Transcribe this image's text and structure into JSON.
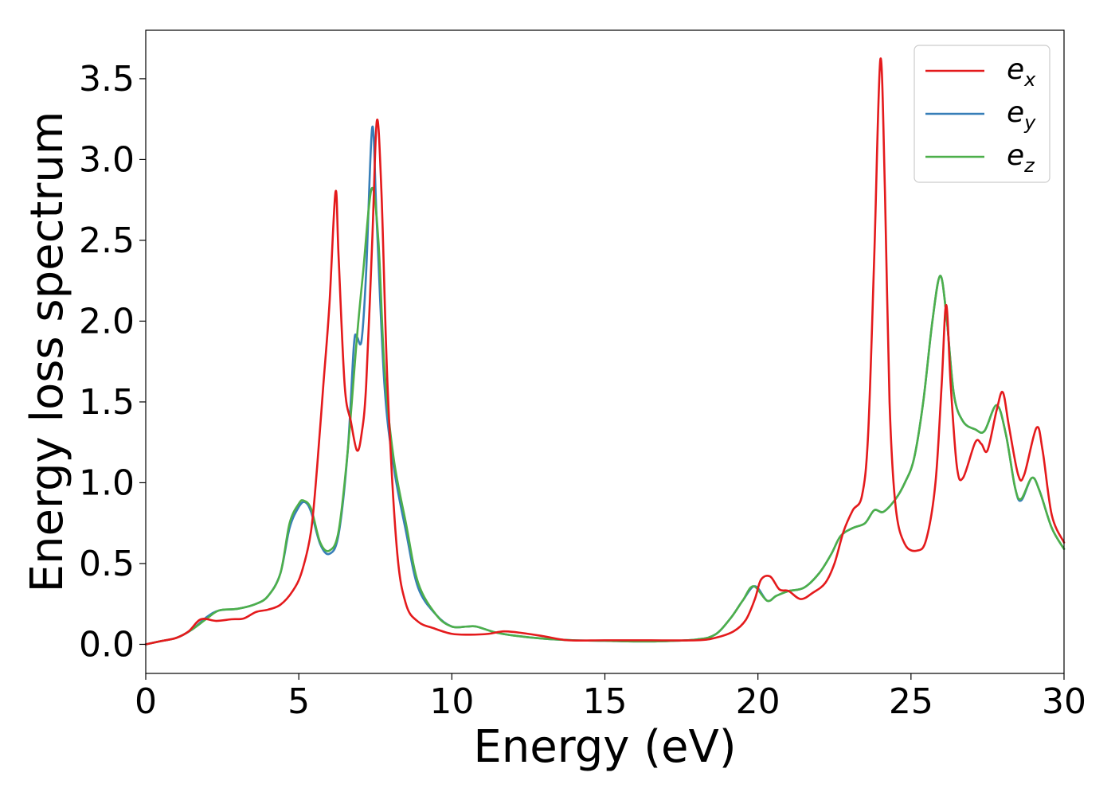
{
  "chart_data": {
    "type": "line",
    "title": "",
    "xlabel": "Energy (eV)",
    "ylabel": "Energy loss spectrum",
    "xlim": [
      0,
      30
    ],
    "ylim": [
      -0.18,
      3.8
    ],
    "x_ticks": [
      0,
      5,
      10,
      15,
      20,
      25,
      30
    ],
    "x_tick_labels": [
      "0",
      "5",
      "10",
      "15",
      "20",
      "25",
      "30"
    ],
    "y_ticks": [
      0.0,
      0.5,
      1.0,
      1.5,
      2.0,
      2.5,
      3.0,
      3.5
    ],
    "y_tick_labels": [
      "0.0",
      "0.5",
      "1.0",
      "1.5",
      "2.0",
      "2.5",
      "3.0",
      "3.5"
    ],
    "grid": false,
    "legend_position": "top-right",
    "series": [
      {
        "name": "e",
        "subscript": "x",
        "color": "#e41a1c",
        "points": [
          [
            0,
            0.0
          ],
          [
            0.5,
            0.02
          ],
          [
            1.0,
            0.04
          ],
          [
            1.4,
            0.08
          ],
          [
            1.8,
            0.155
          ],
          [
            2.3,
            0.145
          ],
          [
            2.8,
            0.155
          ],
          [
            3.2,
            0.16
          ],
          [
            3.6,
            0.2
          ],
          [
            4.0,
            0.215
          ],
          [
            4.4,
            0.245
          ],
          [
            4.8,
            0.33
          ],
          [
            5.1,
            0.45
          ],
          [
            5.4,
            0.7
          ],
          [
            5.6,
            1.1
          ],
          [
            5.8,
            1.6
          ],
          [
            6.0,
            2.1
          ],
          [
            6.2,
            2.8
          ],
          [
            6.3,
            2.4
          ],
          [
            6.5,
            1.6
          ],
          [
            6.7,
            1.38
          ],
          [
            6.9,
            1.2
          ],
          [
            7.05,
            1.3
          ],
          [
            7.2,
            1.6
          ],
          [
            7.4,
            2.5
          ],
          [
            7.55,
            3.24
          ],
          [
            7.7,
            2.8
          ],
          [
            7.9,
            1.6
          ],
          [
            8.2,
            0.6
          ],
          [
            8.5,
            0.25
          ],
          [
            8.9,
            0.14
          ],
          [
            9.4,
            0.1
          ],
          [
            10.0,
            0.065
          ],
          [
            10.6,
            0.06
          ],
          [
            11.2,
            0.065
          ],
          [
            11.7,
            0.08
          ],
          [
            12.3,
            0.07
          ],
          [
            13.0,
            0.05
          ],
          [
            13.8,
            0.025
          ],
          [
            15.0,
            0.025
          ],
          [
            16.5,
            0.025
          ],
          [
            18.0,
            0.025
          ],
          [
            18.6,
            0.04
          ],
          [
            19.2,
            0.08
          ],
          [
            19.6,
            0.15
          ],
          [
            19.9,
            0.28
          ],
          [
            20.1,
            0.4
          ],
          [
            20.4,
            0.42
          ],
          [
            20.7,
            0.34
          ],
          [
            21.0,
            0.33
          ],
          [
            21.4,
            0.28
          ],
          [
            21.8,
            0.32
          ],
          [
            22.2,
            0.38
          ],
          [
            22.5,
            0.5
          ],
          [
            22.8,
            0.7
          ],
          [
            23.1,
            0.83
          ],
          [
            23.4,
            0.92
          ],
          [
            23.6,
            1.3
          ],
          [
            23.8,
            2.4
          ],
          [
            24.0,
            3.62
          ],
          [
            24.15,
            2.8
          ],
          [
            24.3,
            1.5
          ],
          [
            24.5,
            0.85
          ],
          [
            24.8,
            0.62
          ],
          [
            25.2,
            0.58
          ],
          [
            25.5,
            0.65
          ],
          [
            25.8,
            1.0
          ],
          [
            26.0,
            1.6
          ],
          [
            26.15,
            2.1
          ],
          [
            26.3,
            1.6
          ],
          [
            26.5,
            1.1
          ],
          [
            26.7,
            1.03
          ],
          [
            27.1,
            1.25
          ],
          [
            27.3,
            1.24
          ],
          [
            27.5,
            1.2
          ],
          [
            27.8,
            1.45
          ],
          [
            28.0,
            1.56
          ],
          [
            28.2,
            1.35
          ],
          [
            28.5,
            1.05
          ],
          [
            28.7,
            1.05
          ],
          [
            29.1,
            1.34
          ],
          [
            29.3,
            1.2
          ],
          [
            29.6,
            0.8
          ],
          [
            30.0,
            0.63
          ]
        ]
      },
      {
        "name": "e",
        "subscript": "y",
        "color": "#377eb8",
        "points": [
          [
            0,
            0.0
          ],
          [
            0.5,
            0.02
          ],
          [
            1.0,
            0.04
          ],
          [
            1.5,
            0.09
          ],
          [
            2.0,
            0.17
          ],
          [
            2.4,
            0.21
          ],
          [
            3.0,
            0.22
          ],
          [
            3.6,
            0.25
          ],
          [
            4.0,
            0.3
          ],
          [
            4.4,
            0.44
          ],
          [
            4.7,
            0.72
          ],
          [
            5.0,
            0.85
          ],
          [
            5.2,
            0.88
          ],
          [
            5.4,
            0.82
          ],
          [
            5.7,
            0.62
          ],
          [
            6.0,
            0.56
          ],
          [
            6.3,
            0.68
          ],
          [
            6.6,
            1.2
          ],
          [
            6.8,
            1.85
          ],
          [
            6.9,
            1.9
          ],
          [
            7.05,
            1.88
          ],
          [
            7.2,
            2.3
          ],
          [
            7.4,
            3.2
          ],
          [
            7.55,
            2.6
          ],
          [
            7.8,
            1.6
          ],
          [
            8.1,
            1.1
          ],
          [
            8.5,
            0.7
          ],
          [
            8.9,
            0.35
          ],
          [
            9.5,
            0.18
          ],
          [
            10.0,
            0.11
          ],
          [
            10.5,
            0.11
          ],
          [
            10.8,
            0.11
          ],
          [
            11.4,
            0.075
          ],
          [
            12.0,
            0.055
          ],
          [
            13.0,
            0.035
          ],
          [
            14.0,
            0.025
          ],
          [
            15.0,
            0.022
          ],
          [
            16.0,
            0.018
          ],
          [
            17.0,
            0.02
          ],
          [
            18.0,
            0.03
          ],
          [
            18.6,
            0.06
          ],
          [
            19.1,
            0.16
          ],
          [
            19.5,
            0.27
          ],
          [
            19.9,
            0.36
          ],
          [
            20.3,
            0.27
          ],
          [
            20.6,
            0.3
          ],
          [
            21.0,
            0.33
          ],
          [
            21.5,
            0.35
          ],
          [
            22.0,
            0.44
          ],
          [
            22.4,
            0.56
          ],
          [
            22.7,
            0.67
          ],
          [
            23.1,
            0.72
          ],
          [
            23.5,
            0.75
          ],
          [
            23.8,
            0.83
          ],
          [
            24.1,
            0.82
          ],
          [
            24.5,
            0.9
          ],
          [
            24.8,
            1.0
          ],
          [
            25.1,
            1.15
          ],
          [
            25.4,
            1.5
          ],
          [
            25.7,
            2.0
          ],
          [
            25.95,
            2.28
          ],
          [
            26.15,
            2.05
          ],
          [
            26.4,
            1.55
          ],
          [
            26.7,
            1.38
          ],
          [
            27.1,
            1.33
          ],
          [
            27.4,
            1.32
          ],
          [
            27.8,
            1.48
          ],
          [
            28.1,
            1.3
          ],
          [
            28.4,
            0.97
          ],
          [
            28.6,
            0.89
          ],
          [
            28.95,
            1.03
          ],
          [
            29.2,
            0.95
          ],
          [
            29.6,
            0.72
          ],
          [
            30.0,
            0.59
          ]
        ]
      },
      {
        "name": "e",
        "subscript": "z",
        "color": "#4daf4a",
        "points": [
          [
            0,
            0.0
          ],
          [
            0.5,
            0.02
          ],
          [
            1.0,
            0.04
          ],
          [
            1.5,
            0.09
          ],
          [
            2.0,
            0.16
          ],
          [
            2.4,
            0.21
          ],
          [
            3.0,
            0.22
          ],
          [
            3.6,
            0.25
          ],
          [
            4.0,
            0.3
          ],
          [
            4.4,
            0.44
          ],
          [
            4.7,
            0.75
          ],
          [
            5.0,
            0.87
          ],
          [
            5.15,
            0.89
          ],
          [
            5.4,
            0.84
          ],
          [
            5.7,
            0.63
          ],
          [
            6.0,
            0.58
          ],
          [
            6.3,
            0.7
          ],
          [
            6.6,
            1.2
          ],
          [
            6.9,
            1.9
          ],
          [
            7.1,
            2.3
          ],
          [
            7.38,
            2.82
          ],
          [
            7.6,
            2.5
          ],
          [
            7.8,
            1.7
          ],
          [
            8.1,
            1.15
          ],
          [
            8.5,
            0.75
          ],
          [
            8.9,
            0.38
          ],
          [
            9.5,
            0.18
          ],
          [
            10.0,
            0.11
          ],
          [
            10.5,
            0.11
          ],
          [
            10.8,
            0.11
          ],
          [
            11.4,
            0.075
          ],
          [
            12.0,
            0.055
          ],
          [
            13.0,
            0.035
          ],
          [
            14.0,
            0.025
          ],
          [
            15.0,
            0.022
          ],
          [
            16.0,
            0.018
          ],
          [
            17.0,
            0.02
          ],
          [
            18.0,
            0.03
          ],
          [
            18.6,
            0.06
          ],
          [
            19.1,
            0.16
          ],
          [
            19.5,
            0.27
          ],
          [
            19.85,
            0.36
          ],
          [
            20.3,
            0.27
          ],
          [
            20.6,
            0.3
          ],
          [
            21.0,
            0.33
          ],
          [
            21.5,
            0.35
          ],
          [
            22.0,
            0.44
          ],
          [
            22.4,
            0.56
          ],
          [
            22.7,
            0.67
          ],
          [
            23.1,
            0.72
          ],
          [
            23.5,
            0.75
          ],
          [
            23.8,
            0.83
          ],
          [
            24.1,
            0.82
          ],
          [
            24.5,
            0.9
          ],
          [
            24.8,
            1.0
          ],
          [
            25.1,
            1.15
          ],
          [
            25.4,
            1.5
          ],
          [
            25.7,
            2.0
          ],
          [
            25.95,
            2.28
          ],
          [
            26.15,
            2.05
          ],
          [
            26.4,
            1.55
          ],
          [
            26.7,
            1.38
          ],
          [
            27.1,
            1.33
          ],
          [
            27.4,
            1.32
          ],
          [
            27.8,
            1.48
          ],
          [
            28.1,
            1.3
          ],
          [
            28.4,
            0.97
          ],
          [
            28.6,
            0.9
          ],
          [
            28.95,
            1.03
          ],
          [
            29.2,
            0.95
          ],
          [
            29.6,
            0.72
          ],
          [
            30.0,
            0.59
          ]
        ]
      }
    ]
  }
}
